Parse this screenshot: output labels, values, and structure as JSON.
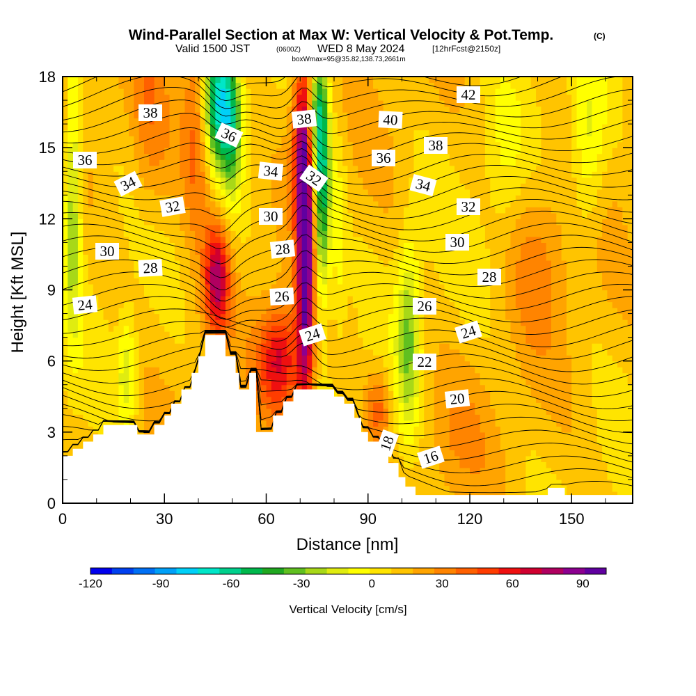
{
  "chart_data": {
    "type": "heatmap",
    "title": "Wind-Parallel Section at Max W: Vertical Velocity & Pot.Temp.",
    "title_mark": "(C)",
    "subtitle": {
      "valid": "Valid 1500 JST",
      "utc": "(0600Z)",
      "date": "WED 8 May 2024",
      "forecast": "[12hrFcst@2150z]"
    },
    "box_info": "boxWmax=95@35.82,138.73,2661m",
    "xlabel": "Distance [nm]",
    "ylabel": "Height [Kft MSL]",
    "xlim": [
      0,
      168
    ],
    "ylim": [
      0,
      18
    ],
    "x_ticks": [
      0,
      30,
      60,
      90,
      120,
      150
    ],
    "y_ticks": [
      0,
      3,
      6,
      9,
      12,
      15,
      18
    ],
    "colorbar": {
      "title": "Vertical Velocity [cm/s]",
      "range": [
        -120,
        100
      ],
      "tick_values": [
        -120,
        -90,
        -60,
        -30,
        0,
        30,
        60,
        90
      ],
      "tick_labels": [
        "-120",
        "-90",
        "-60",
        "-30",
        "0",
        "30",
        "60",
        "90"
      ],
      "colors": [
        "#0000ee",
        "#0040f0",
        "#0070f5",
        "#00a0f8",
        "#00d0f8",
        "#00e6c8",
        "#00d08c",
        "#00b84c",
        "#20a820",
        "#60c020",
        "#a8d818",
        "#e0ec10",
        "#ffff00",
        "#ffe400",
        "#ffc400",
        "#ffa400",
        "#ff8400",
        "#ff6000",
        "#ff3c00",
        "#ef1010",
        "#d00030",
        "#b00060",
        "#8c0090",
        "#6000a0"
      ]
    },
    "updraft_max_cm_s": 95,
    "theta_contour_labels": [
      "16",
      "18",
      "20",
      "22",
      "24",
      "24",
      "24",
      "26",
      "26",
      "28",
      "28",
      "28",
      "30",
      "30",
      "30",
      "32",
      "32",
      "32",
      "34",
      "34",
      "34",
      "36",
      "36",
      "36",
      "38",
      "38",
      "38",
      "40",
      "42"
    ],
    "terrain_kft": [
      [
        0,
        2.0
      ],
      [
        3,
        2.0
      ],
      [
        3,
        2.3
      ],
      [
        6,
        2.3
      ],
      [
        6,
        2.6
      ],
      [
        9,
        2.6
      ],
      [
        9,
        2.9
      ],
      [
        12,
        2.9
      ],
      [
        12,
        3.3
      ],
      [
        22,
        3.3
      ],
      [
        22,
        2.9
      ],
      [
        27,
        2.9
      ],
      [
        27,
        3.3
      ],
      [
        30,
        3.3
      ],
      [
        30,
        3.7
      ],
      [
        32,
        3.7
      ],
      [
        32,
        4.2
      ],
      [
        35,
        4.2
      ],
      [
        35,
        4.8
      ],
      [
        38,
        4.8
      ],
      [
        38,
        5.5
      ],
      [
        40,
        5.5
      ],
      [
        40,
        6.2
      ],
      [
        42,
        6.2
      ],
      [
        42,
        7.1
      ],
      [
        48,
        7.1
      ],
      [
        48,
        6.2
      ],
      [
        51,
        6.2
      ],
      [
        51,
        5.5
      ],
      [
        52,
        5.5
      ],
      [
        52,
        4.8
      ],
      [
        55,
        4.8
      ],
      [
        55,
        5.5
      ],
      [
        57,
        5.5
      ],
      [
        57,
        3.0
      ],
      [
        62,
        3.0
      ],
      [
        62,
        3.7
      ],
      [
        65,
        3.7
      ],
      [
        65,
        4.3
      ],
      [
        68,
        4.3
      ],
      [
        68,
        4.8
      ],
      [
        80,
        4.8
      ],
      [
        80,
        4.5
      ],
      [
        83,
        4.5
      ],
      [
        83,
        4.2
      ],
      [
        86,
        4.2
      ],
      [
        86,
        3.6
      ],
      [
        88,
        3.6
      ],
      [
        88,
        3.0
      ],
      [
        90,
        3.0
      ],
      [
        90,
        2.6
      ],
      [
        94,
        2.6
      ],
      [
        94,
        2.2
      ],
      [
        96,
        2.2
      ],
      [
        96,
        1.7
      ],
      [
        99,
        1.7
      ],
      [
        99,
        1.1
      ],
      [
        101,
        1.1
      ],
      [
        101,
        0.7
      ],
      [
        104,
        0.7
      ],
      [
        104,
        0.35
      ],
      [
        143,
        0.35
      ],
      [
        143,
        0.65
      ],
      [
        148,
        0.65
      ],
      [
        148,
        0.35
      ],
      [
        168,
        0.35
      ],
      [
        168,
        0
      ],
      [
        0,
        0
      ]
    ]
  }
}
